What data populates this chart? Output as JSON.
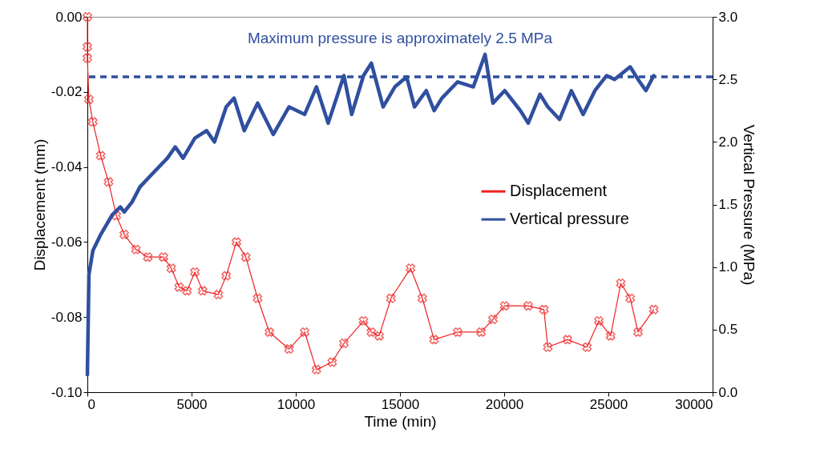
{
  "chart_data": {
    "type": "line",
    "xlabel": "Time (min)",
    "ylabel": "Displacement (mm)",
    "y2label": "Vertical Pressure (MPa)",
    "xlim": [
      0,
      30000
    ],
    "xticks": [
      0,
      5000,
      10000,
      15000,
      20000,
      25000,
      30000
    ],
    "ylim": [
      -0.1,
      0.0
    ],
    "yticks": [
      {
        "value": -0.1,
        "label": "-0.10"
      },
      {
        "value": -0.08,
        "label": "-0.08"
      },
      {
        "value": -0.06,
        "label": "-0.06"
      },
      {
        "value": -0.04,
        "label": "-0.04"
      },
      {
        "value": -0.02,
        "label": "-0.02"
      },
      {
        "value": 0.0,
        "label": "0.00"
      }
    ],
    "y2lim": [
      0.0,
      3.0
    ],
    "y2ticks": [
      {
        "value": 0.0,
        "label": "0.0"
      },
      {
        "value": 0.5,
        "label": "0.5"
      },
      {
        "value": 1.0,
        "label": "1.0"
      },
      {
        "value": 1.5,
        "label": "1.5"
      },
      {
        "value": 2.0,
        "label": "2.0"
      },
      {
        "value": 2.5,
        "label": "2.5"
      },
      {
        "value": 3.0,
        "label": "3.0"
      }
    ],
    "grid": false,
    "legend": "right",
    "series": [
      {
        "name": "Displacement",
        "color": "#ee2222",
        "marker": "cross",
        "line_style": "solid",
        "x": [
          0,
          0,
          0,
          75,
          263,
          640,
          1016,
          1392,
          1769,
          2333,
          2898,
          3651,
          4027,
          4404,
          4780,
          5157,
          5533,
          6286,
          6662,
          7152,
          7603,
          8168,
          8733,
          9674,
          10427,
          10991,
          11744,
          12309,
          13250,
          13626,
          14002,
          14567,
          15508,
          16072,
          16637,
          17766,
          18895,
          19460,
          20024,
          21153,
          21906,
          22094,
          23035,
          23976,
          24541,
          25106,
          25595,
          26047,
          26423,
          27176
        ],
        "values": [
          0.0,
          -0.008,
          -0.011,
          -0.022,
          -0.028,
          -0.037,
          -0.044,
          -0.053,
          -0.058,
          -0.062,
          -0.064,
          -0.064,
          -0.067,
          -0.072,
          -0.073,
          -0.068,
          -0.073,
          -0.074,
          -0.069,
          -0.06,
          -0.064,
          -0.075,
          -0.084,
          -0.0885,
          -0.084,
          -0.094,
          -0.092,
          -0.087,
          -0.081,
          -0.084,
          -0.085,
          -0.075,
          -0.067,
          -0.075,
          -0.086,
          -0.084,
          -0.084,
          -0.0806,
          -0.077,
          -0.077,
          -0.078,
          -0.088,
          -0.086,
          -0.088,
          -0.081,
          -0.085,
          -0.071,
          -0.075,
          -0.084,
          -0.078
        ]
      },
      {
        "name": "Vertical pressure",
        "color": "#2f4f9f",
        "axis": "y2",
        "marker": "none",
        "line_style": "solid",
        "x": [
          0,
          75,
          263,
          640,
          1204,
          1581,
          1769,
          2145,
          2522,
          3086,
          3839,
          4216,
          4592,
          5157,
          5721,
          6098,
          6662,
          7039,
          7528,
          8168,
          8921,
          9674,
          10427,
          10991,
          11555,
          12309,
          12685,
          13250,
          13626,
          14191,
          14755,
          15320,
          15696,
          16261,
          16637,
          17013,
          17766,
          18519,
          19083,
          19460,
          20024,
          20777,
          21153,
          21718,
          22094,
          22659,
          23223,
          23788,
          24353,
          24918,
          25294,
          26047,
          26423,
          26799,
          27176
        ],
        "values": [
          0.14,
          0.94,
          1.13,
          1.26,
          1.42,
          1.48,
          1.44,
          1.52,
          1.64,
          1.74,
          1.87,
          1.96,
          1.87,
          2.03,
          2.09,
          2.0,
          2.28,
          2.35,
          2.09,
          2.31,
          2.06,
          2.28,
          2.22,
          2.44,
          2.15,
          2.53,
          2.22,
          2.53,
          2.63,
          2.28,
          2.44,
          2.52,
          2.28,
          2.41,
          2.25,
          2.35,
          2.48,
          2.44,
          2.7,
          2.31,
          2.41,
          2.25,
          2.15,
          2.38,
          2.28,
          2.18,
          2.41,
          2.22,
          2.41,
          2.53,
          2.5,
          2.6,
          2.5,
          2.41,
          2.53
        ]
      }
    ],
    "ref_lines": [
      {
        "axis": "y2",
        "value": 2.52,
        "color": "#2f4f9f",
        "line_style": "dashed"
      }
    ],
    "annotations": [
      "Maximum pressure is approximately 2.5 MPa"
    ]
  }
}
